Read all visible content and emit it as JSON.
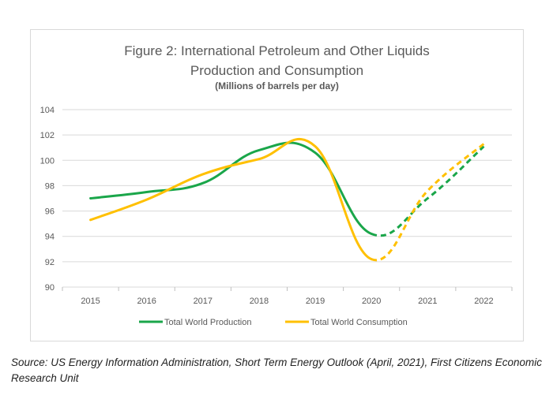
{
  "chart_data": {
    "type": "line",
    "title_line1": "Figure 2: International Petroleum and Other Liquids",
    "title_line2": "Production and Consumption",
    "subtitle": "(Millions of barrels per day)",
    "xlabel": "",
    "ylabel": "",
    "categories": [
      "2015",
      "2016",
      "2017",
      "2018",
      "2019",
      "2020",
      "2021",
      "2022"
    ],
    "ylim": [
      90,
      104
    ],
    "yticks": [
      90,
      92,
      94,
      96,
      98,
      100,
      102,
      104
    ],
    "grid": true,
    "legend_position": "bottom",
    "forecast_from": "2020",
    "series": [
      {
        "name": "Total World Production",
        "values": [
          97.0,
          97.5,
          98.2,
          100.8,
          100.6,
          94.2,
          97.0,
          101.1
        ],
        "color": "#1aa64a",
        "forecast_style": "dashed"
      },
      {
        "name": "Total World Consumption",
        "values": [
          95.3,
          96.9,
          98.9,
          100.1,
          101.1,
          92.2,
          97.6,
          101.3
        ],
        "color": "#ffc000",
        "forecast_style": "dashed"
      }
    ]
  },
  "source_note": "Source: US Energy Information Administration, Short Term Energy Outlook (April, 2021), First Citizens Economic Research Unit"
}
